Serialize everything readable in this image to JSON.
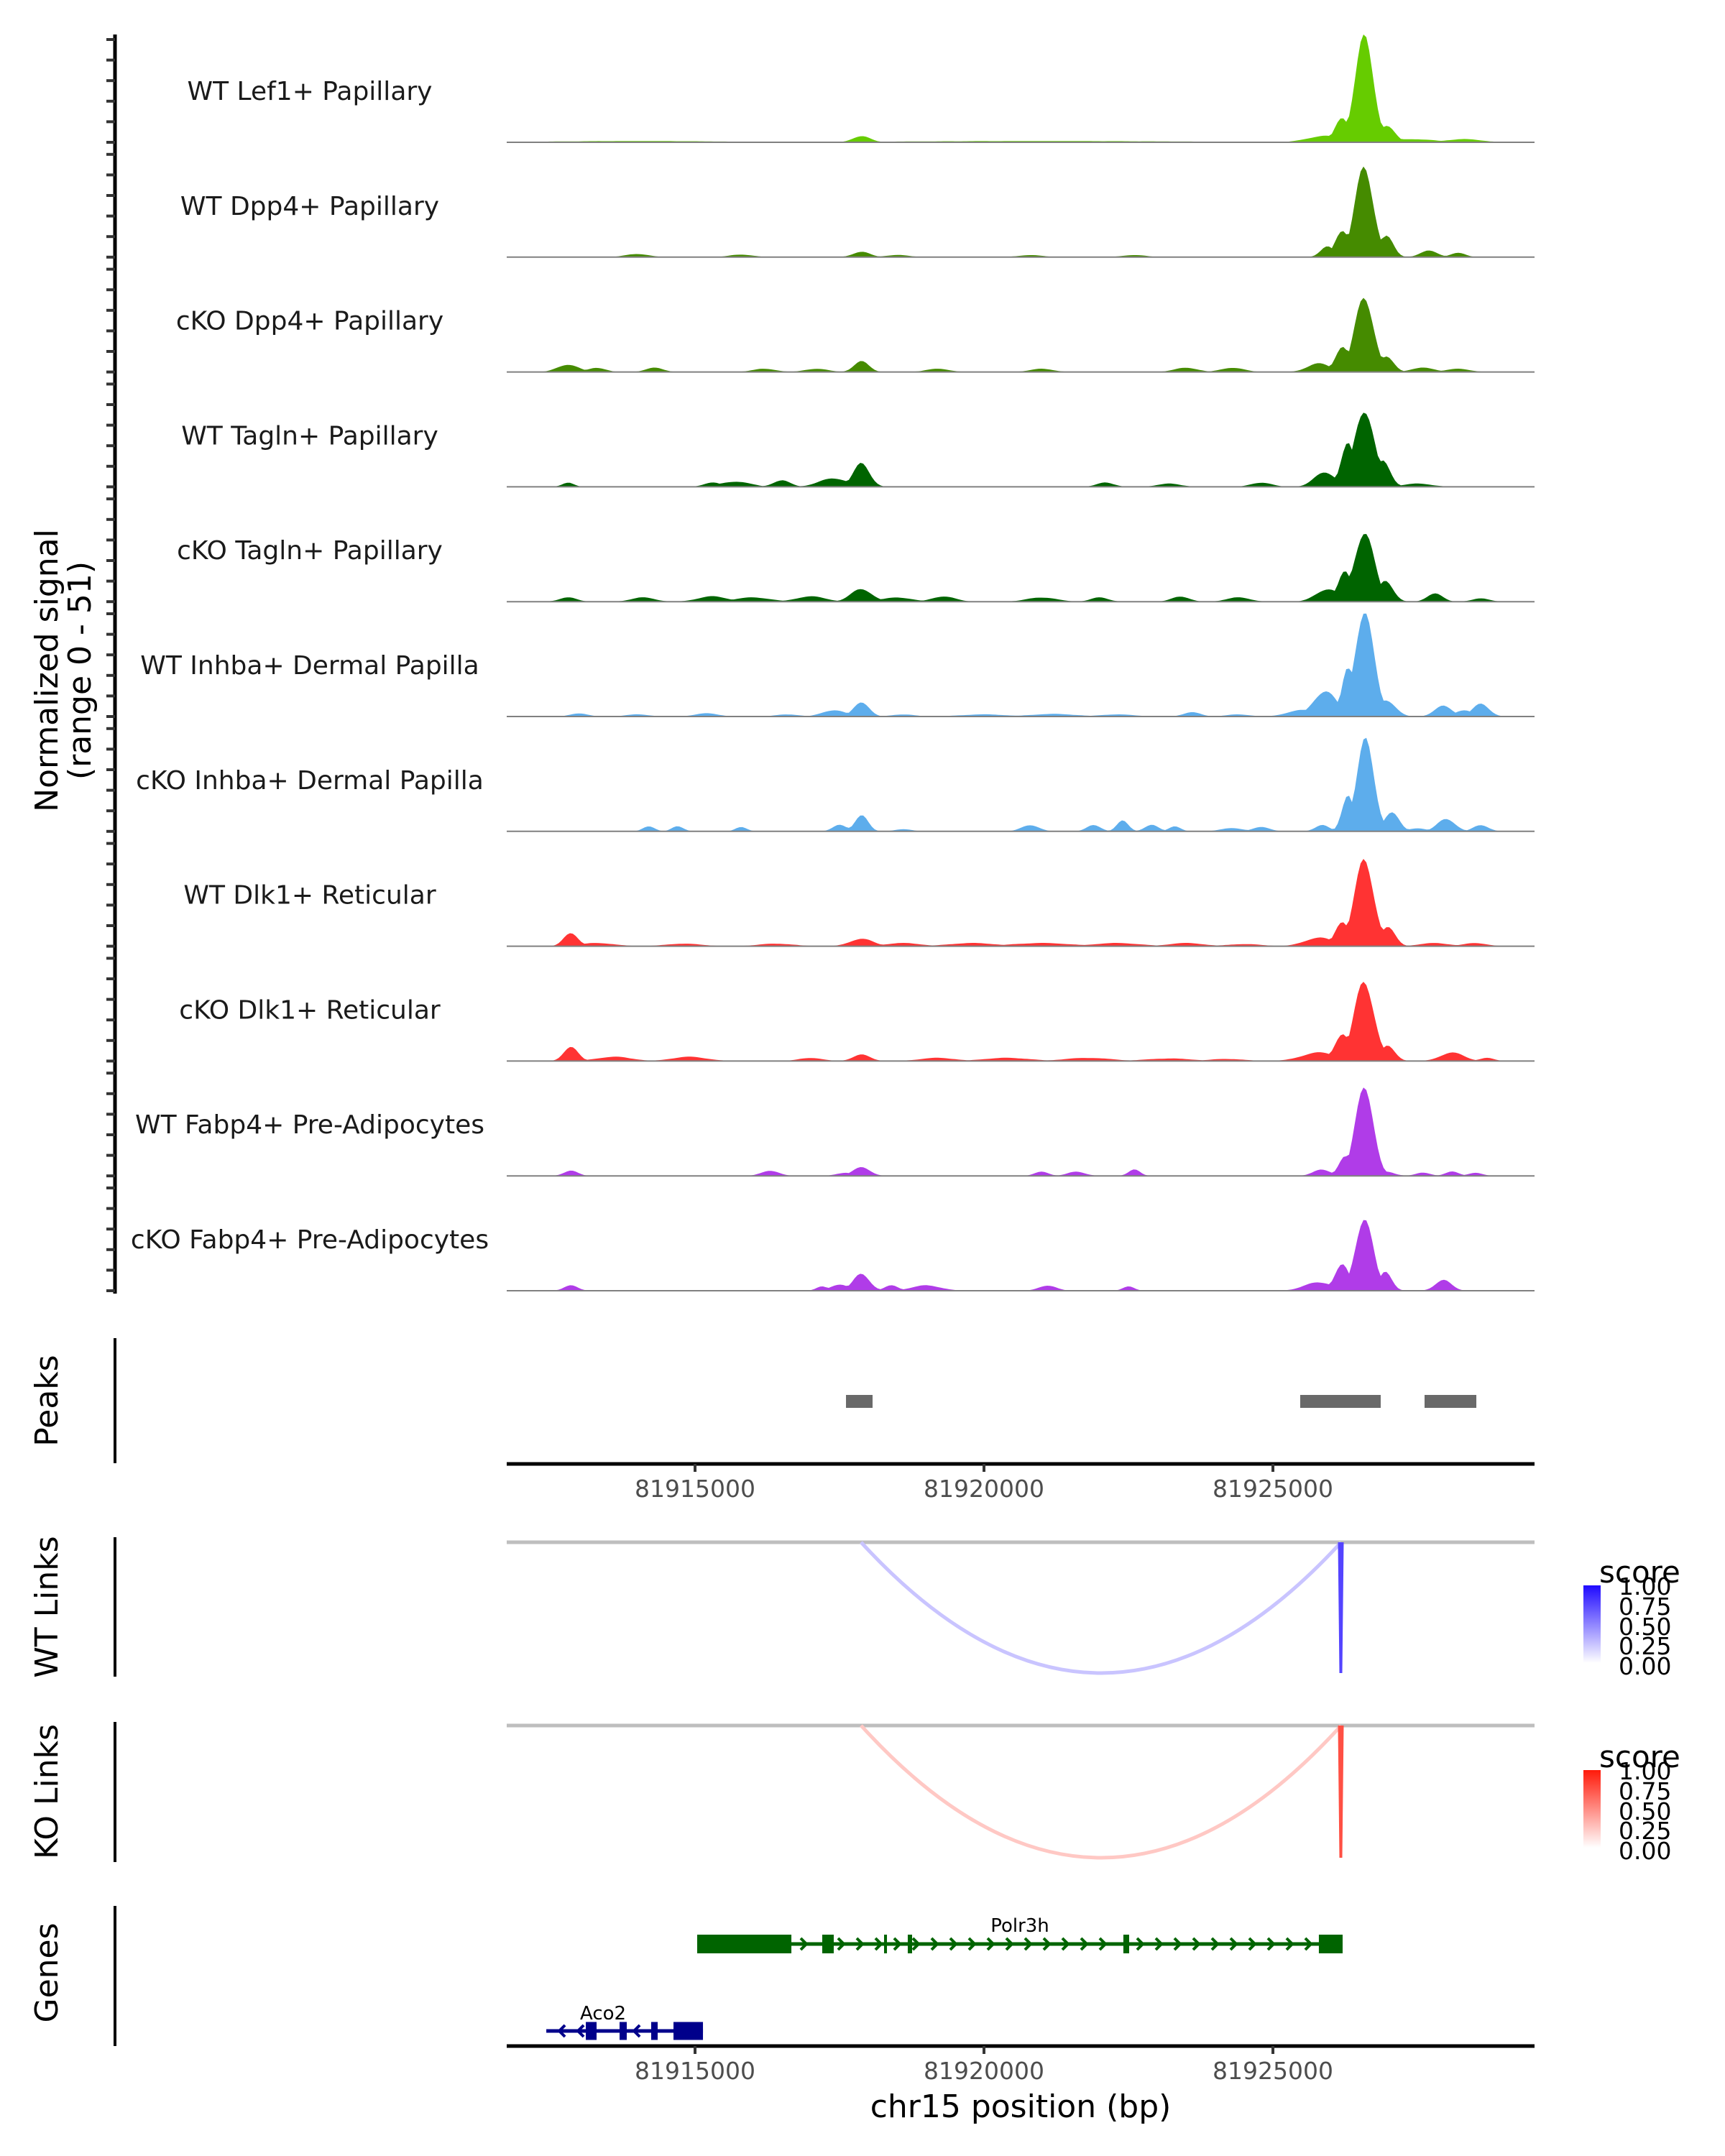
{
  "chart_data": {
    "type": "area",
    "title": "",
    "region": {
      "chrom": "chr15",
      "start": 81911741,
      "end": 81929527
    },
    "xlabel": "chr15 position (bp)",
    "x_ticks": [
      81915000,
      81920000,
      81925000
    ],
    "x_tick_labels": [
      "81915000",
      "81920000",
      "81925000"
    ],
    "ylabel": "Normalized signal",
    "ylabel_sub": "(range 0 - 51)",
    "ylim": [
      0,
      51
    ],
    "grid": false,
    "coverage_tracks": [
      {
        "name": "WT Lef1+ Papillary",
        "color": "#66CC00",
        "peaks": [
          [
            81926580,
            49,
            160
          ],
          [
            81926200,
            12,
            120
          ],
          [
            81926960,
            8,
            140
          ],
          [
            81917880,
            3,
            150
          ],
          [
            81925900,
            3,
            300
          ],
          [
            81927400,
            1.5,
            400
          ],
          [
            81928300,
            1.5,
            300
          ],
          [
            81914000,
            0.6,
            1500
          ],
          [
            81921000,
            0.6,
            2500
          ]
        ]
      },
      {
        "name": "WT Dpp4+ Papillary",
        "color": "#458B00",
        "peaks": [
          [
            81926580,
            42,
            160
          ],
          [
            81926200,
            13,
            120
          ],
          [
            81926960,
            10,
            120
          ],
          [
            81925950,
            5,
            120
          ],
          [
            81917880,
            2.5,
            150
          ],
          [
            81927700,
            3,
            150
          ],
          [
            81928200,
            2,
            130
          ],
          [
            81914000,
            1.5,
            200
          ],
          [
            81915800,
            1.2,
            200
          ],
          [
            81918500,
            1,
            200
          ],
          [
            81920800,
            1,
            200
          ],
          [
            81922600,
            1,
            200
          ]
        ]
      },
      {
        "name": "cKO Dpp4+ Papillary",
        "color": "#458B00",
        "peaks": [
          [
            81926580,
            36,
            160
          ],
          [
            81926200,
            12,
            120
          ],
          [
            81926960,
            7,
            130
          ],
          [
            81925800,
            4,
            200
          ],
          [
            81917880,
            5,
            130
          ],
          [
            81912800,
            3.5,
            180
          ],
          [
            81913300,
            2,
            150
          ],
          [
            81914300,
            2,
            150
          ],
          [
            81916200,
            1.5,
            200
          ],
          [
            81917100,
            1.5,
            200
          ],
          [
            81919200,
            1.5,
            200
          ],
          [
            81921000,
            1.5,
            200
          ],
          [
            81923500,
            2,
            200
          ],
          [
            81924300,
            2,
            200
          ],
          [
            81927600,
            2,
            200
          ],
          [
            81928200,
            1.5,
            200
          ]
        ]
      },
      {
        "name": "WT Tagln+ Papillary",
        "color": "#006400",
        "peaks": [
          [
            81926580,
            37,
            170
          ],
          [
            81926300,
            20,
            120
          ],
          [
            81926900,
            12,
            130
          ],
          [
            81925900,
            7,
            180
          ],
          [
            81917880,
            11,
            140
          ],
          [
            81917400,
            4,
            250
          ],
          [
            81916500,
            3,
            150
          ],
          [
            81915700,
            2.5,
            250
          ],
          [
            81912800,
            2,
            100
          ],
          [
            81915300,
            2,
            150
          ],
          [
            81922100,
            2,
            150
          ],
          [
            81923200,
            1.5,
            200
          ],
          [
            81924800,
            2,
            180
          ],
          [
            81927500,
            1.5,
            250
          ]
        ]
      },
      {
        "name": "cKO Tagln+ Papillary",
        "color": "#006400",
        "peaks": [
          [
            81926580,
            33,
            170
          ],
          [
            81926250,
            14,
            120
          ],
          [
            81926950,
            10,
            130
          ],
          [
            81925950,
            6,
            200
          ],
          [
            81917880,
            6,
            180
          ],
          [
            81912800,
            2,
            150
          ],
          [
            81914100,
            2,
            200
          ],
          [
            81915300,
            2.5,
            250
          ],
          [
            81916000,
            2,
            300
          ],
          [
            81917000,
            2.5,
            250
          ],
          [
            81918500,
            2,
            250
          ],
          [
            81919300,
            2.5,
            200
          ],
          [
            81921000,
            2,
            250
          ],
          [
            81922000,
            2,
            150
          ],
          [
            81923400,
            2.5,
            150
          ],
          [
            81924400,
            2,
            200
          ],
          [
            81927800,
            4,
            130
          ],
          [
            81928600,
            1.5,
            150
          ]
        ]
      },
      {
        "name": "WT Inhba+ Dermal Papilla",
        "color": "#5DADEC",
        "peaks": [
          [
            81926580,
            48,
            170
          ],
          [
            81926300,
            24,
            100
          ],
          [
            81925900,
            12,
            200
          ],
          [
            81926950,
            8,
            160
          ],
          [
            81925500,
            3,
            250
          ],
          [
            81917880,
            7,
            130
          ],
          [
            81917400,
            3,
            200
          ],
          [
            81927950,
            5,
            150
          ],
          [
            81928600,
            6,
            140
          ],
          [
            81928300,
            3,
            150
          ],
          [
            81913000,
            1.5,
            150
          ],
          [
            81914000,
            1,
            200
          ],
          [
            81915200,
            1.5,
            200
          ],
          [
            81916600,
            1,
            200
          ],
          [
            81918600,
            1,
            200
          ],
          [
            81920000,
            1,
            400
          ],
          [
            81921200,
            1.2,
            400
          ],
          [
            81922300,
            1,
            300
          ],
          [
            81923600,
            2,
            150
          ],
          [
            81924400,
            1,
            200
          ]
        ]
      },
      {
        "name": "cKO Inhba+ Dermal Papilla",
        "color": "#5DADEC",
        "peaks": [
          [
            81926600,
            42.5,
            150
          ],
          [
            81926300,
            18,
            100
          ],
          [
            81927050,
            9,
            130
          ],
          [
            81925850,
            3,
            120
          ],
          [
            81917880,
            8,
            110
          ],
          [
            81917500,
            3,
            120
          ],
          [
            81914200,
            2.5,
            100
          ],
          [
            81914700,
            2.5,
            100
          ],
          [
            81915800,
            2,
            100
          ],
          [
            81917600,
            2,
            100
          ],
          [
            81920800,
            3,
            150
          ],
          [
            81921900,
            3,
            120
          ],
          [
            81922400,
            5,
            100
          ],
          [
            81922900,
            3,
            120
          ],
          [
            81923300,
            2.5,
            100
          ],
          [
            81924300,
            1.5,
            200
          ],
          [
            81924800,
            2,
            150
          ],
          [
            81928000,
            6,
            150
          ],
          [
            81928600,
            3,
            130
          ],
          [
            81918600,
            1,
            150
          ],
          [
            81927500,
            1.5,
            150
          ]
        ]
      },
      {
        "name": "WT Dlk1+ Reticular",
        "color": "#FF3333",
        "peaks": [
          [
            81926580,
            40,
            170
          ],
          [
            81926200,
            12,
            120
          ],
          [
            81926980,
            9,
            130
          ],
          [
            81925800,
            4,
            250
          ],
          [
            81917880,
            3.5,
            200
          ],
          [
            81912850,
            6.5,
            120
          ],
          [
            81913300,
            1.5,
            300
          ],
          [
            81914800,
            1.2,
            300
          ],
          [
            81916400,
            1.2,
            300
          ],
          [
            81918600,
            1.5,
            300
          ],
          [
            81919800,
            1.5,
            400
          ],
          [
            81921000,
            1.5,
            500
          ],
          [
            81922300,
            1.5,
            400
          ],
          [
            81923500,
            1.5,
            300
          ],
          [
            81924500,
            1,
            300
          ],
          [
            81927800,
            1.5,
            250
          ],
          [
            81928500,
            1.5,
            200
          ]
        ]
      },
      {
        "name": "cKO Dlk1+ Reticular",
        "color": "#FF3333",
        "peaks": [
          [
            81926580,
            38,
            170
          ],
          [
            81926200,
            13,
            130
          ],
          [
            81926980,
            7,
            130
          ],
          [
            81925800,
            4,
            300
          ],
          [
            81917880,
            3,
            150
          ],
          [
            81912850,
            7,
            120
          ],
          [
            81913600,
            2,
            300
          ],
          [
            81914900,
            2,
            300
          ],
          [
            81917000,
            1.5,
            200
          ],
          [
            81919200,
            1.5,
            300
          ],
          [
            81920400,
            1.5,
            400
          ],
          [
            81921800,
            1.5,
            400
          ],
          [
            81923200,
            1.2,
            400
          ],
          [
            81924200,
            1,
            300
          ],
          [
            81928100,
            4,
            200
          ],
          [
            81928700,
            1.5,
            120
          ]
        ]
      },
      {
        "name": "WT Fabp4+ Pre-Adipocytes",
        "color": "#B03CE8",
        "peaks": [
          [
            81926580,
            44,
            150
          ],
          [
            81926250,
            9,
            110
          ],
          [
            81925850,
            3,
            150
          ],
          [
            81917880,
            4,
            150
          ],
          [
            81912850,
            2.5,
            120
          ],
          [
            81916300,
            2.5,
            150
          ],
          [
            81917600,
            1.5,
            150
          ],
          [
            81921000,
            2,
            120
          ],
          [
            81921600,
            2,
            150
          ],
          [
            81922600,
            3,
            100
          ],
          [
            81926950,
            2,
            150
          ],
          [
            81927600,
            1.5,
            130
          ],
          [
            81928100,
            2,
            120
          ],
          [
            81928500,
            1.5,
            120
          ]
        ]
      },
      {
        "name": "cKO Fabp4+ Pre-Adipocytes",
        "color": "#B03CE8",
        "peaks": [
          [
            81926580,
            35,
            150
          ],
          [
            81926200,
            12,
            130
          ],
          [
            81926950,
            9,
            110
          ],
          [
            81925800,
            4,
            250
          ],
          [
            81917880,
            8,
            140
          ],
          [
            81917500,
            3,
            150
          ],
          [
            81912850,
            2.5,
            120
          ],
          [
            81917200,
            2,
            100
          ],
          [
            81918400,
            2.5,
            120
          ],
          [
            81919000,
            2.5,
            250
          ],
          [
            81921100,
            2.5,
            150
          ],
          [
            81922500,
            2,
            100
          ],
          [
            81927950,
            5,
            140
          ]
        ]
      }
    ],
    "peaks_track": {
      "label": "Peaks",
      "color": "#696969",
      "regions": [
        [
          81917612,
          81918072
        ],
        [
          81925472,
          81926865
        ],
        [
          81927624,
          81928520
        ]
      ]
    },
    "links_tracks": [
      {
        "label": "WT Links",
        "legend_title": "score",
        "low_color": "#FFFFFF",
        "high_color": "#1F0AFF",
        "links": [
          {
            "start": 81917873,
            "end": 81926180,
            "score": 0.2
          },
          {
            "start": 81926150,
            "end": 81926200,
            "score": 0.75
          }
        ]
      },
      {
        "label": "KO Links",
        "legend_title": "score",
        "low_color": "#FFFFFF",
        "high_color": "#FF1A0A",
        "links": [
          {
            "start": 81917873,
            "end": 81926180,
            "score": 0.2
          },
          {
            "start": 81926150,
            "end": 81926200,
            "score": 0.75
          }
        ]
      }
    ],
    "legend_ticks": [
      "1.00",
      "0.75",
      "0.50",
      "0.25",
      "0.00"
    ],
    "genes_track": {
      "label": "Genes",
      "genes": [
        {
          "name": "Polr3h",
          "strand": "-",
          "color": "#006400",
          "start": 81915037,
          "end": 81926206,
          "exons": [
            [
              81915037,
              81916667
            ],
            [
              81917201,
              81917400
            ],
            [
              81918271,
              81918321
            ],
            [
              81918681,
              81918756
            ],
            [
              81922412,
              81922512
            ],
            [
              81925795,
              81926206
            ]
          ]
        },
        {
          "name": "Aco2",
          "strand": "+",
          "color": "#00008B",
          "start": 81912426,
          "end": 81915137,
          "exons": [
            [
              81913110,
              81913296
            ],
            [
              81913694,
              81913818
            ],
            [
              81914241,
              81914353
            ],
            [
              81914627,
              81915137
            ]
          ]
        }
      ]
    }
  }
}
